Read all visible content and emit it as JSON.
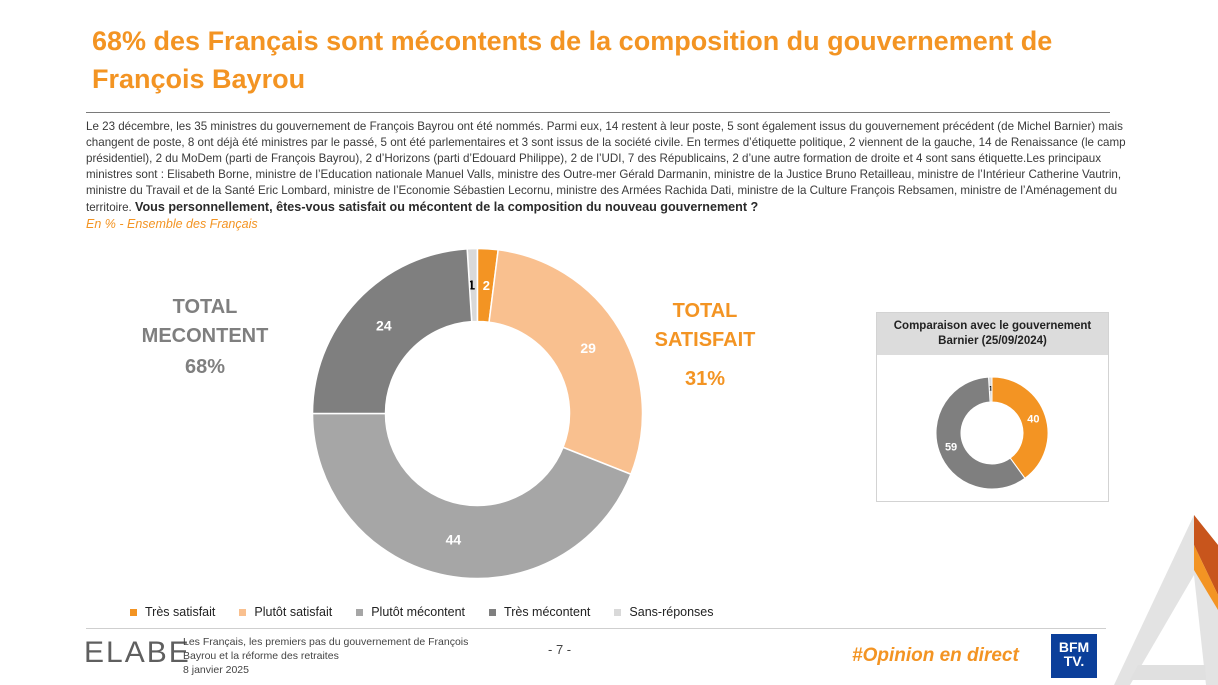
{
  "title": "68% des Français sont mécontents de la composition du gouvernement de François Bayrou",
  "intro": "Le 23 décembre, les 35 ministres du gouvernement de François Bayrou ont été nommés. Parmi eux, 14 restent à leur poste, 5 sont également issus du gouvernement précédent (de Michel Barnier) mais changent de poste, 8 ont déjà été ministres par le passé, 5 ont été parlementaires et 3 sont issus de la société civile. En termes d’étiquette politique, 2 viennent de la gauche, 14 de Renaissance (le camp présidentiel), 2 du MoDem (parti de François Bayrou), 2 d’Horizons (parti d’Edouard Philippe), 2 de l’UDI, 7 des Républicains, 2 d’une autre formation de droite et 4 sont sans étiquette.Les principaux ministres sont :  Elisabeth Borne, ministre de l’Education nationale Manuel Valls, ministre des Outre-mer Gérald Darmanin, ministre de la Justice Bruno Retailleau, ministre de l’Intérieur Catherine Vautrin, ministre du Travail et de la Santé Eric Lombard, ministre de l’Economie Sébastien Lecornu, ministre des Armées Rachida Dati, ministre de la Culture François Rebsamen, ministre de l’Aménagement du territoire.",
  "question": "Vous personnellement, êtes-vous satisfait ou mécontent de la composition du nouveau gouvernement ?",
  "base": "En % - Ensemble des Français",
  "totals": {
    "mecontent_label": "TOTAL MECONTENT",
    "mecontent_value": "68%",
    "satisfait_label": "TOTAL SATISFAIT",
    "satisfait_value": "31%"
  },
  "comparison_title": "Comparaison avec le gouvernement Barnier (25/09/2024)",
  "chart_data": [
    {
      "type": "pie",
      "variant": "donut",
      "unit": "%",
      "categories": [
        "Très satisfait",
        "Plutôt satisfait",
        "Plutôt mécontent",
        "Très mécontent",
        "Sans-réponses"
      ],
      "values": [
        2,
        29,
        44,
        24,
        1
      ],
      "colors": [
        "#f39423",
        "#f9c08f",
        "#a6a6a6",
        "#7f7f7f",
        "#d9d9d9"
      ],
      "label_colors": [
        "#ffffff",
        "#ffffff",
        "#ffffff",
        "#ffffff",
        "#000000"
      ]
    },
    {
      "type": "pie",
      "variant": "donut",
      "title": "Comparaison avec le gouvernement Barnier (25/09/2024)",
      "unit": "%",
      "categories": [
        "Total satisfait",
        "Total mécontent",
        "Sans-réponses"
      ],
      "values": [
        40,
        59,
        1
      ],
      "colors": [
        "#f39423",
        "#7f7f7f",
        "#d9d9d9"
      ],
      "label_colors": [
        "#ffffff",
        "#ffffff",
        "#000000"
      ]
    }
  ],
  "legend": [
    {
      "label": "Très satisfait",
      "color": "#f39423"
    },
    {
      "label": "Plutôt satisfait",
      "color": "#f9c08f"
    },
    {
      "label": "Plutôt mécontent",
      "color": "#a6a6a6"
    },
    {
      "label": "Très mécontent",
      "color": "#7f7f7f"
    },
    {
      "label": "Sans-réponses",
      "color": "#d9d9d9"
    }
  ],
  "footer": {
    "logo": "ELABE",
    "study_title": "Les Français, les premiers pas du gouvernement de François Bayrou et la réforme des retraites",
    "date": "8 janvier 2025",
    "page": "- 7 -",
    "hashtag": "#Opinion en direct",
    "channel_logo_line1": "BFM",
    "channel_logo_line2": "TV."
  }
}
